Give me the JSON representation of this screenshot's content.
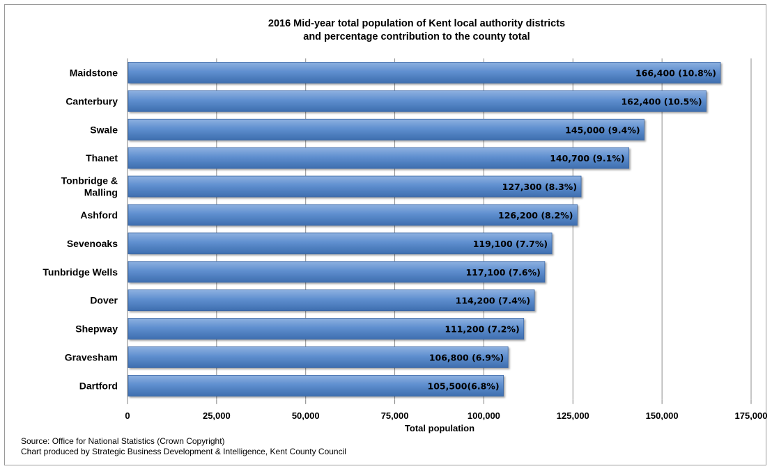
{
  "chart_data": {
    "type": "bar",
    "orientation": "horizontal",
    "title_lines": [
      "2016 Mid-year total population of Kent local authority districts",
      "and percentage contribution to the county total"
    ],
    "xlabel": "Total population",
    "ylabel": "",
    "xlim": [
      0,
      175000
    ],
    "xticks": [
      0,
      25000,
      50000,
      75000,
      100000,
      125000,
      150000,
      175000
    ],
    "xtick_labels": [
      "0",
      "25,000",
      "50,000",
      "75,000",
      "100,000",
      "125,000",
      "150,000",
      "175,000"
    ],
    "grid": true,
    "bar_color": "#4f81bd",
    "categories": [
      "Maidstone",
      "Canterbury",
      "Swale",
      "Thanet",
      "Tonbridge & Malling",
      "Ashford",
      "Sevenoaks",
      "Tunbridge Wells",
      "Dover",
      "Shepway",
      "Gravesham",
      "Dartford"
    ],
    "category_label_lines": [
      [
        "Maidstone"
      ],
      [
        "Canterbury"
      ],
      [
        "Swale"
      ],
      [
        "Thanet"
      ],
      [
        "Tonbridge &",
        "Malling"
      ],
      [
        "Ashford"
      ],
      [
        "Sevenoaks"
      ],
      [
        "Tunbridge Wells"
      ],
      [
        "Dover"
      ],
      [
        "Shepway"
      ],
      [
        "Gravesham"
      ],
      [
        "Dartford"
      ]
    ],
    "values": [
      166400,
      162400,
      145000,
      140700,
      127300,
      126200,
      119100,
      117100,
      114200,
      111200,
      106800,
      105500
    ],
    "data_labels": [
      "166,400 (10.8%)",
      "162,400 (10.5%)",
      "145,000 (9.4%)",
      "140,700 (9.1%)",
      "127,300 (8.3%)",
      "126,200 (8.2%)",
      "119,100 (7.7%)",
      "117,100 (7.6%)",
      "114,200 (7.4%)",
      "111,200 (7.2%)",
      "106,800 (6.9%)",
      "105,500(6.8%)"
    ]
  },
  "source_lines": [
    "Source: Office for National Statistics (Crown Copyright)",
    "Chart produced by Strategic Business Development & Intelligence, Kent County Council"
  ]
}
